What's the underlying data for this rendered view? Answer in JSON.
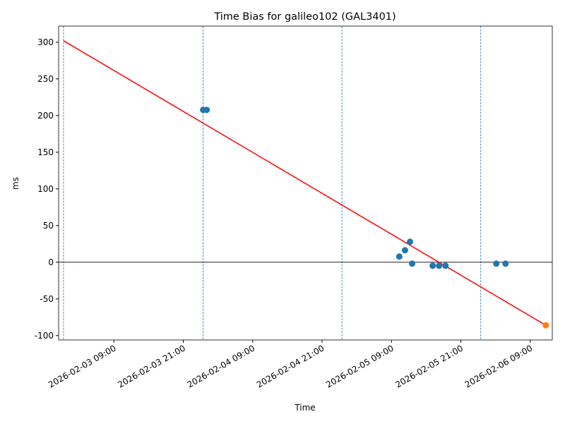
{
  "chart_data": {
    "type": "scatter",
    "title": "Time Bias for galileo102 (GAL3401)",
    "xlabel": "Time",
    "ylabel": "ms",
    "xlim": [
      "2026-02-02 23:27",
      "2026-02-06 12:48"
    ],
    "xticks": [
      "2026-02-03 09:00",
      "2026-02-03 21:00",
      "2026-02-04 09:00",
      "2026-02-04 21:00",
      "2026-02-05 09:00",
      "2026-02-05 21:00",
      "2026-02-06 09:00"
    ],
    "ylim": [
      -106,
      322
    ],
    "yticks": [
      -100,
      -50,
      0,
      50,
      100,
      150,
      200,
      250,
      300
    ],
    "hline": 0,
    "hline_color": "#000000",
    "vlines": [
      "2026-02-03 00:18",
      "2026-02-04 00:26",
      "2026-02-05 00:26",
      "2026-02-06 00:26"
    ],
    "vline_color": "#1f77b4",
    "points": {
      "color": "#1f77b4",
      "x": [
        "2026-02-04 00:26",
        "2026-02-04 01:03",
        "2026-02-05 10:21",
        "2026-02-05 11:20",
        "2026-02-05 12:12",
        "2026-02-05 12:34",
        "2026-02-05 16:07",
        "2026-02-05 17:13",
        "2026-02-05 18:20",
        "2026-02-06 03:07",
        "2026-02-06 04:43"
      ],
      "values": [
        207.7,
        207.7,
        7.7,
        16.3,
        27.9,
        -1.9,
        -4.8,
        -4.8,
        -4.8,
        -1.9,
        -1.9
      ]
    },
    "fit": {
      "color": "#ff0000",
      "x": [
        "2026-02-03 00:18",
        "2026-02-06 11:41"
      ],
      "values": [
        302,
        -86
      ]
    },
    "predicted": {
      "color": "#ff7f0e",
      "x": [
        "2026-02-06 11:41"
      ],
      "values": [
        -86
      ]
    }
  }
}
